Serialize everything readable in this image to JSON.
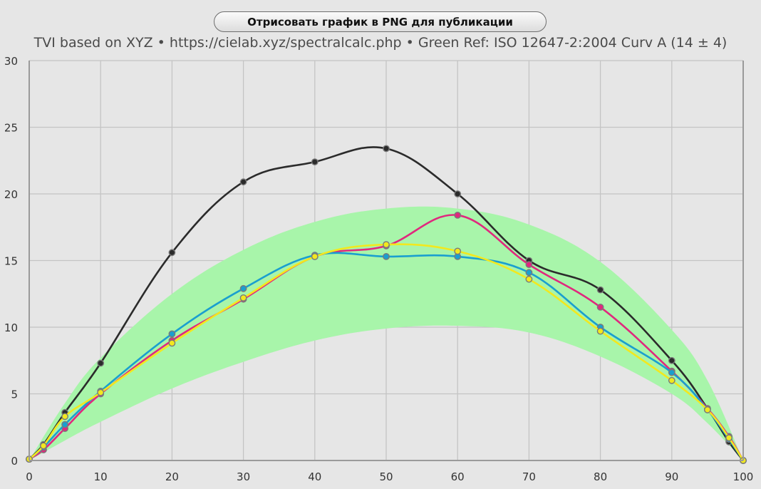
{
  "render_button": {
    "label": "Отрисовать график в PNG для публикации"
  },
  "chart_data": {
    "type": "line",
    "title": "TVI based on XYZ  •  https://cielab.xyz/spectralcalc.php  •  Green Ref: ISO 12647-2:2004 Curv A (14 ± 4)",
    "xlabel": "",
    "ylabel": "",
    "xlim": [
      0,
      100
    ],
    "ylim": [
      0,
      30
    ],
    "x_ticks": [
      0,
      10,
      20,
      30,
      40,
      50,
      60,
      70,
      80,
      90,
      100
    ],
    "y_ticks": [
      0,
      5,
      10,
      15,
      20,
      25,
      30
    ],
    "grid": true,
    "reference_band": {
      "color": "#a8f5aa",
      "x": [
        0,
        5,
        10,
        20,
        30,
        40,
        50,
        60,
        70,
        80,
        90,
        95,
        100
      ],
      "upper": [
        0,
        4.3,
        7.7,
        12.5,
        15.8,
        17.9,
        18.9,
        18.9,
        17.7,
        14.9,
        9.8,
        6.0,
        0
      ],
      "lower": [
        0,
        1.5,
        2.9,
        5.4,
        7.4,
        9.0,
        9.9,
        10.1,
        9.6,
        7.8,
        5.0,
        2.8,
        0
      ]
    },
    "series": [
      {
        "color": "#2b2b2b",
        "x": [
          0,
          2,
          5,
          10,
          20,
          30,
          40,
          50,
          60,
          70,
          80,
          90,
          95,
          98,
          100
        ],
        "y": [
          0.1,
          1.2,
          3.6,
          7.3,
          15.6,
          20.9,
          22.4,
          23.4,
          20.0,
          15.0,
          12.8,
          7.5,
          3.9,
          1.4,
          0
        ]
      },
      {
        "color": "#e0287e",
        "x": [
          0,
          2,
          5,
          10,
          20,
          30,
          40,
          50,
          60,
          70,
          80,
          90,
          95,
          98,
          100
        ],
        "y": [
          0.1,
          0.8,
          2.4,
          5.0,
          9.0,
          12.1,
          15.3,
          16.1,
          18.4,
          14.7,
          11.5,
          6.7,
          3.9,
          1.8,
          0
        ]
      },
      {
        "color": "#1a9fcf",
        "x": [
          0,
          2,
          5,
          10,
          20,
          30,
          40,
          50,
          60,
          70,
          80,
          90,
          95,
          98,
          100
        ],
        "y": [
          0.1,
          1.0,
          2.7,
          5.2,
          9.5,
          12.9,
          15.4,
          15.3,
          15.3,
          14.1,
          10.0,
          6.6,
          3.8,
          1.6,
          0
        ]
      },
      {
        "color": "#f2e81e",
        "x": [
          0,
          2,
          5,
          10,
          20,
          30,
          40,
          50,
          60,
          70,
          80,
          90,
          95,
          98,
          100
        ],
        "y": [
          0.1,
          1.1,
          3.3,
          5.1,
          8.8,
          12.2,
          15.3,
          16.2,
          15.7,
          13.6,
          9.7,
          6.0,
          3.8,
          1.7,
          0
        ]
      }
    ]
  }
}
